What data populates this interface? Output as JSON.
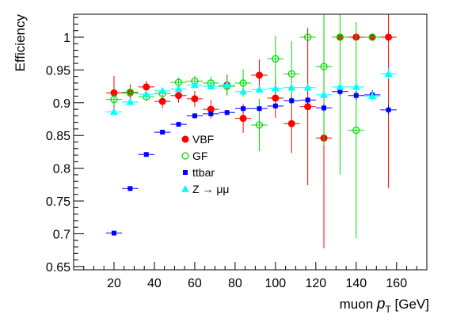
{
  "chart_data": {
    "type": "scatter",
    "title": "",
    "xlabel": "muon p_T [GeV]",
    "xlabel_main": "muon ",
    "xlabel_p": "p",
    "xlabel_sub": "T",
    "xlabel_unit": " [GeV]",
    "ylabel": "Efficiency",
    "xlim": [
      0,
      175
    ],
    "ylim": [
      0.645,
      1.035
    ],
    "xticks": [
      20,
      40,
      60,
      80,
      100,
      120,
      140,
      160
    ],
    "yticks": [
      0.65,
      0.7,
      0.75,
      0.8,
      0.85,
      0.9,
      0.95,
      1.0
    ],
    "ytick_labels": [
      "0.65",
      "0.7",
      "0.75",
      "0.8",
      "0.85",
      "0.9",
      "0.95",
      "1"
    ],
    "grid": false,
    "legend_position": "center",
    "series": [
      {
        "name": "VBF",
        "marker": "circle-filled",
        "color": "#ff0000",
        "x": [
          20,
          28,
          36,
          44,
          52,
          60,
          68,
          76,
          84,
          92,
          100,
          108,
          116,
          124,
          132,
          140,
          148,
          156
        ],
        "y": [
          0.915,
          0.915,
          0.924,
          0.902,
          0.911,
          0.906,
          0.89,
          0.927,
          0.876,
          0.942,
          0.907,
          0.868,
          0.894,
          0.846,
          1.0,
          1.0,
          1.0,
          1.0
        ],
        "xerr": [
          4,
          4,
          4,
          4,
          4,
          4,
          4,
          4,
          4,
          4,
          4,
          4,
          4,
          4,
          4,
          4,
          4,
          4
        ],
        "yerr": [
          0.026,
          0.013,
          0.009,
          0.01,
          0.011,
          0.012,
          0.014,
          0.016,
          0.022,
          0.024,
          0.03,
          0.045,
          0.12,
          0.168,
          0.0,
          0.0,
          0.0,
          0.23
        ]
      },
      {
        "name": "GF",
        "marker": "circle-open",
        "color": "#00dd00",
        "x": [
          20,
          28,
          36,
          44,
          52,
          60,
          68,
          76,
          84,
          92,
          100,
          108,
          116,
          124,
          132,
          140,
          148
        ],
        "y": [
          0.905,
          0.916,
          0.909,
          0.914,
          0.931,
          0.933,
          0.93,
          0.925,
          0.93,
          0.866,
          0.967,
          0.944,
          1.0,
          0.955,
          1.0,
          0.858,
          1.0
        ],
        "xerr": [
          4,
          4,
          4,
          4,
          4,
          4,
          4,
          4,
          4,
          4,
          4,
          4,
          4,
          4,
          4,
          4,
          4
        ],
        "yerr": [
          0.009,
          0.007,
          0.006,
          0.007,
          0.007,
          0.008,
          0.01,
          0.014,
          0.021,
          0.04,
          0.035,
          0.05,
          0.0,
          0.12,
          0.21,
          0.165,
          0.0
        ]
      },
      {
        "name": "ttbar",
        "marker": "square-filled",
        "color": "#0000ff",
        "x": [
          20,
          28,
          36,
          44,
          52,
          60,
          68,
          76,
          84,
          92,
          100,
          108,
          116,
          124,
          132,
          140,
          148,
          156
        ],
        "y": [
          0.701,
          0.769,
          0.821,
          0.855,
          0.867,
          0.88,
          0.883,
          0.885,
          0.891,
          0.891,
          0.895,
          0.903,
          0.904,
          0.892,
          0.917,
          0.911,
          0.912,
          0.889
        ],
        "xerr": [
          4,
          4,
          4,
          4,
          4,
          4,
          4,
          4,
          4,
          4,
          4,
          4,
          4,
          4,
          4,
          4,
          4,
          4
        ],
        "yerr": [
          0.003,
          0.003,
          0.003,
          0.003,
          0.003,
          0.003,
          0.003,
          0.004,
          0.004,
          0.004,
          0.005,
          0.005,
          0.005,
          0.006,
          0.006,
          0.007,
          0.007,
          0.008
        ]
      },
      {
        "name": "Z → μμ",
        "marker": "triangle-filled",
        "color": "#00ffff",
        "x": [
          20,
          28,
          36,
          44,
          52,
          60,
          68,
          76,
          84,
          92,
          100,
          108,
          116,
          124,
          132,
          140,
          148,
          156
        ],
        "y": [
          0.886,
          0.901,
          0.913,
          0.918,
          0.921,
          0.927,
          0.925,
          0.927,
          0.917,
          0.92,
          0.922,
          0.923,
          0.923,
          0.912,
          0.924,
          0.924,
          0.91,
          0.944
        ],
        "xerr": [
          4,
          4,
          4,
          4,
          4,
          4,
          4,
          4,
          4,
          4,
          4,
          4,
          4,
          4,
          4,
          4,
          4,
          4
        ],
        "yerr": [
          0.001,
          0.001,
          0.001,
          0.001,
          0.001,
          0.001,
          0.002,
          0.002,
          0.002,
          0.003,
          0.003,
          0.004,
          0.004,
          0.005,
          0.005,
          0.006,
          0.007,
          0.008
        ]
      }
    ]
  },
  "colors": {
    "VBF": "#ff0000",
    "GF": "#00dd00",
    "ttbar": "#0000ff",
    "Zmumu": "#00ffff",
    "axis": "#000000"
  }
}
